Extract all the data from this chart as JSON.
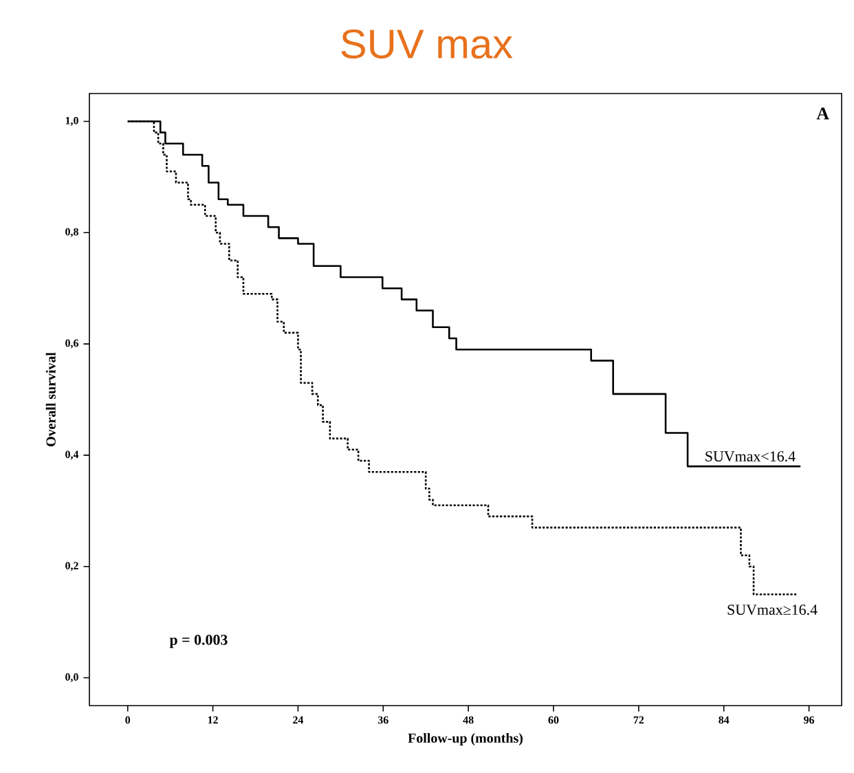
{
  "chart_data": {
    "type": "step",
    "title": "SUV max",
    "xlabel": "Follow-up (months)",
    "ylabel": "Overall survival",
    "xlim": [
      -5.4,
      100.6
    ],
    "ylim": [
      -0.05,
      1.05
    ],
    "xticks": [
      0,
      12,
      24,
      36,
      48,
      60,
      72,
      84,
      96
    ],
    "yticks": [
      {
        "value": 0,
        "label": "0,0"
      },
      {
        "value": 0.2,
        "label": "0,2"
      },
      {
        "value": 0.4,
        "label": "0,4"
      },
      {
        "value": 0.6,
        "label": "0,6"
      },
      {
        "value": 0.8,
        "label": "0,8"
      },
      {
        "value": 1,
        "label": "1,0"
      }
    ],
    "legend": false,
    "grid": false,
    "annotations": [
      "A",
      "p = 0.003"
    ],
    "series": [
      {
        "name": "SUVmax<16.4",
        "color": "#000000",
        "line_style": "solid",
        "x": [
          0,
          4.6,
          5.3,
          7.8,
          10.5,
          11.4,
          12.8,
          14.1,
          16.3,
          19.8,
          21.3,
          24,
          26.2,
          30,
          35.9,
          38.6,
          40.7,
          43,
          45.3,
          46.3,
          65.3,
          68.4,
          75.8,
          78.9,
          94.8
        ],
        "values": [
          1.0,
          0.98,
          0.96,
          0.94,
          0.92,
          0.89,
          0.86,
          0.85,
          0.83,
          0.81,
          0.79,
          0.78,
          0.74,
          0.72,
          0.7,
          0.68,
          0.66,
          0.63,
          0.61,
          0.59,
          0.57,
          0.51,
          0.44,
          0.38,
          0.38
        ]
      },
      {
        "name": "SUVmax≥16.4",
        "color": "#000000",
        "line_style": "dotted",
        "x": [
          0,
          3.7,
          4.3,
          5,
          5.5,
          6.8,
          8.5,
          8.9,
          10.9,
          12.4,
          13,
          14.3,
          15.5,
          16.3,
          20.3,
          21.1,
          22,
          24,
          24.4,
          26,
          26.8,
          27.5,
          28.5,
          31,
          32.5,
          34,
          42,
          42.5,
          43,
          50.8,
          57,
          86.4,
          87.6,
          88.2,
          94.4
        ],
        "values": [
          1.0,
          0.98,
          0.96,
          0.94,
          0.91,
          0.89,
          0.86,
          0.85,
          0.83,
          0.8,
          0.78,
          0.75,
          0.72,
          0.69,
          0.68,
          0.64,
          0.62,
          0.59,
          0.53,
          0.51,
          0.49,
          0.46,
          0.43,
          0.41,
          0.39,
          0.37,
          0.34,
          0.32,
          0.31,
          0.29,
          0.27,
          0.22,
          0.2,
          0.15,
          0.15
        ]
      }
    ]
  }
}
